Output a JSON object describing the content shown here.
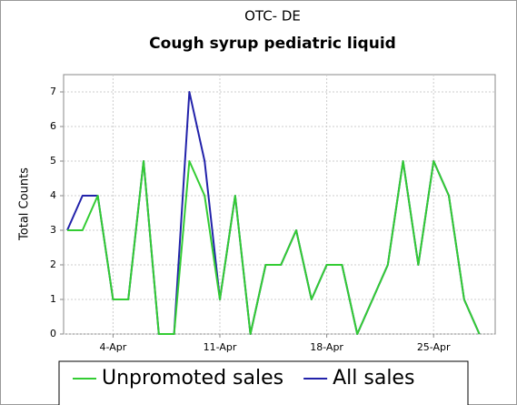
{
  "chart_data": {
    "type": "line",
    "title": "OTC- DE",
    "subtitle": "Cough syrup pediatric liquid",
    "y_label": "Total Counts",
    "categories": [
      null,
      null,
      null,
      "4-Apr",
      null,
      null,
      null,
      null,
      null,
      null,
      "11-Apr",
      null,
      null,
      null,
      null,
      null,
      null,
      "18-Apr",
      null,
      null,
      null,
      null,
      null,
      null,
      "25-Apr",
      null,
      null,
      null
    ],
    "series": [
      {
        "name": "Unpromoted sales",
        "color": "#33cc33",
        "values": [
          3,
          3,
          4,
          1,
          1,
          5,
          0,
          0,
          5,
          4,
          1,
          4,
          0,
          2,
          2,
          3,
          1,
          2,
          2,
          0,
          1,
          2,
          5,
          2,
          5,
          4,
          1,
          0
        ]
      },
      {
        "name": "All sales",
        "color": "#2222aa",
        "values": [
          3,
          4,
          4,
          1,
          1,
          5,
          0,
          0,
          7,
          5,
          1,
          4,
          0,
          2,
          2,
          3,
          1,
          2,
          2,
          0,
          1,
          2,
          5,
          2,
          5,
          4,
          1,
          0
        ]
      }
    ],
    "ylim": [
      0,
      7.5
    ],
    "yticks": [
      0,
      1,
      2,
      3,
      4,
      5,
      6,
      7
    ],
    "grid": true,
    "legend": "bottom"
  }
}
